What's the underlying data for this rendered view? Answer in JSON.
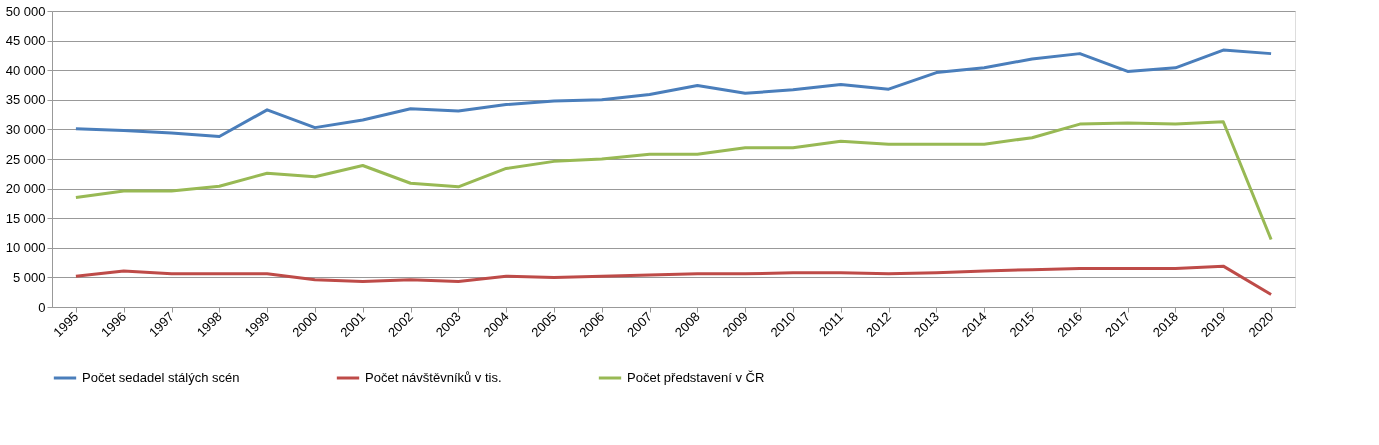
{
  "chart_data": {
    "type": "line",
    "categories": [
      "1995",
      "1996",
      "1997",
      "1998",
      "1999",
      "2000",
      "2001",
      "2002",
      "2003",
      "2004",
      "2005",
      "2006",
      "2007",
      "2008",
      "2009",
      "2010",
      "2011",
      "2012",
      "2013",
      "2014",
      "2015",
      "2016",
      "2017",
      "2018",
      "2019",
      "2020"
    ],
    "series": [
      {
        "name": "Počet sedadel stálých scén",
        "color": "#4a7ebb",
        "values": [
          30100,
          29800,
          29400,
          28800,
          33300,
          30300,
          31600,
          33500,
          33100,
          34200,
          34800,
          35000,
          35900,
          37400,
          36100,
          36700,
          37600,
          36800,
          39600,
          40400,
          41900,
          42800,
          39800,
          40400,
          43400,
          42800
        ]
      },
      {
        "name": "Počet návštěvníků v tis.",
        "color": "#be4b48",
        "values": [
          5200,
          6100,
          5600,
          5600,
          5600,
          4600,
          4300,
          4600,
          4300,
          5200,
          5000,
          5200,
          5400,
          5600,
          5600,
          5800,
          5800,
          5600,
          5800,
          6100,
          6300,
          6500,
          6500,
          6500,
          6900,
          2100
        ]
      },
      {
        "name": "Počet představení v ČR",
        "color": "#98b954",
        "values": [
          18500,
          19600,
          19600,
          20400,
          22600,
          22000,
          23900,
          20900,
          20300,
          23400,
          24600,
          25000,
          25800,
          25800,
          26900,
          26900,
          28000,
          27500,
          27500,
          27500,
          28600,
          30900,
          31100,
          30900,
          31300,
          11400
        ]
      }
    ],
    "ylim": [
      0,
      50000
    ],
    "yticks": [
      0,
      {
        "value": 5000,
        "label": "5 000"
      },
      {
        "value": 10000,
        "label": "10 000"
      },
      {
        "value": 15000,
        "label": "15 000"
      },
      {
        "value": 20000,
        "label": "20 000"
      },
      {
        "value": 25000,
        "label": "25 000"
      },
      {
        "value": 30000,
        "label": "30 000"
      },
      {
        "value": 35000,
        "label": "35 000"
      },
      {
        "value": 40000,
        "label": "40 000"
      },
      {
        "value": 45000,
        "label": "45 000"
      },
      {
        "value": 50000,
        "label": "50 000"
      }
    ],
    "grid": "y",
    "legend": "bottom",
    "marker": "none",
    "line_style": "solid"
  }
}
